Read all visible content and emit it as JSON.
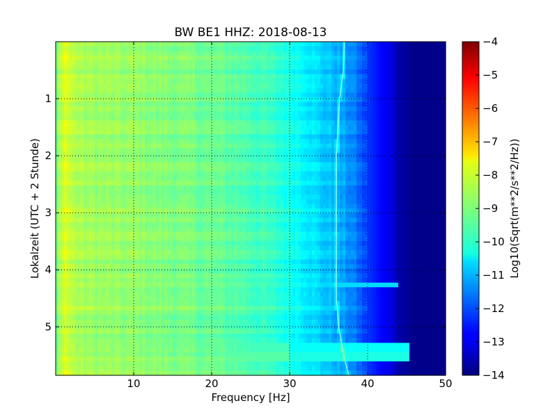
{
  "chart_data": {
    "type": "heatmap",
    "title": "BW BE1 HHZ: 2018-08-13",
    "xlabel": "Frequency [Hz]",
    "ylabel": "Lokalzeit (UTC + 2 Stunde)",
    "xlim": [
      0,
      50
    ],
    "ylim": [
      5.85,
      0
    ],
    "x_ticks": [
      10,
      20,
      30,
      40,
      50
    ],
    "y_ticks": [
      1,
      2,
      3,
      4,
      5
    ],
    "grid": true,
    "colormap": "jet",
    "colorbar": {
      "label": "Log10(Sqrt(m**2/s**2/Hz))",
      "range": [
        -14,
        -4
      ],
      "ticks": [
        -4,
        -5,
        -6,
        -7,
        -8,
        -9,
        -10,
        -11,
        -12,
        -13,
        -14
      ]
    },
    "spectral_profile": {
      "frequency_hz": [
        0,
        1,
        2,
        3,
        5,
        8,
        10,
        12,
        15,
        20,
        25,
        30,
        32,
        34,
        36,
        38,
        40,
        42,
        43,
        44,
        46,
        50
      ],
      "log10_amplitude": [
        -9.3,
        -8.0,
        -8.4,
        -8.6,
        -8.7,
        -8.8,
        -8.8,
        -8.9,
        -9.0,
        -9.2,
        -9.5,
        -10.0,
        -10.3,
        -10.7,
        -11.0,
        -11.4,
        -12.2,
        -12.8,
        -13.0,
        -13.6,
        -13.9,
        -13.9
      ]
    },
    "bright_bands": [
      {
        "time": 4.28,
        "f_end_hz": 44,
        "log10_amplitude": -10.0
      },
      {
        "time": 5.35,
        "f_end_hz": 45.5,
        "log10_amplitude": -9.6
      },
      {
        "time": 5.52,
        "f_end_hz": 45.5,
        "log10_amplitude": -9.4
      }
    ],
    "spectral_line": {
      "time": [
        0,
        0.5,
        1,
        2,
        3,
        4,
        4.5,
        5,
        5.5,
        5.85
      ],
      "frequency_hz": [
        37.0,
        36.9,
        36.4,
        36.0,
        36.0,
        36.0,
        36.0,
        36.3,
        36.9,
        37.6
      ]
    }
  }
}
